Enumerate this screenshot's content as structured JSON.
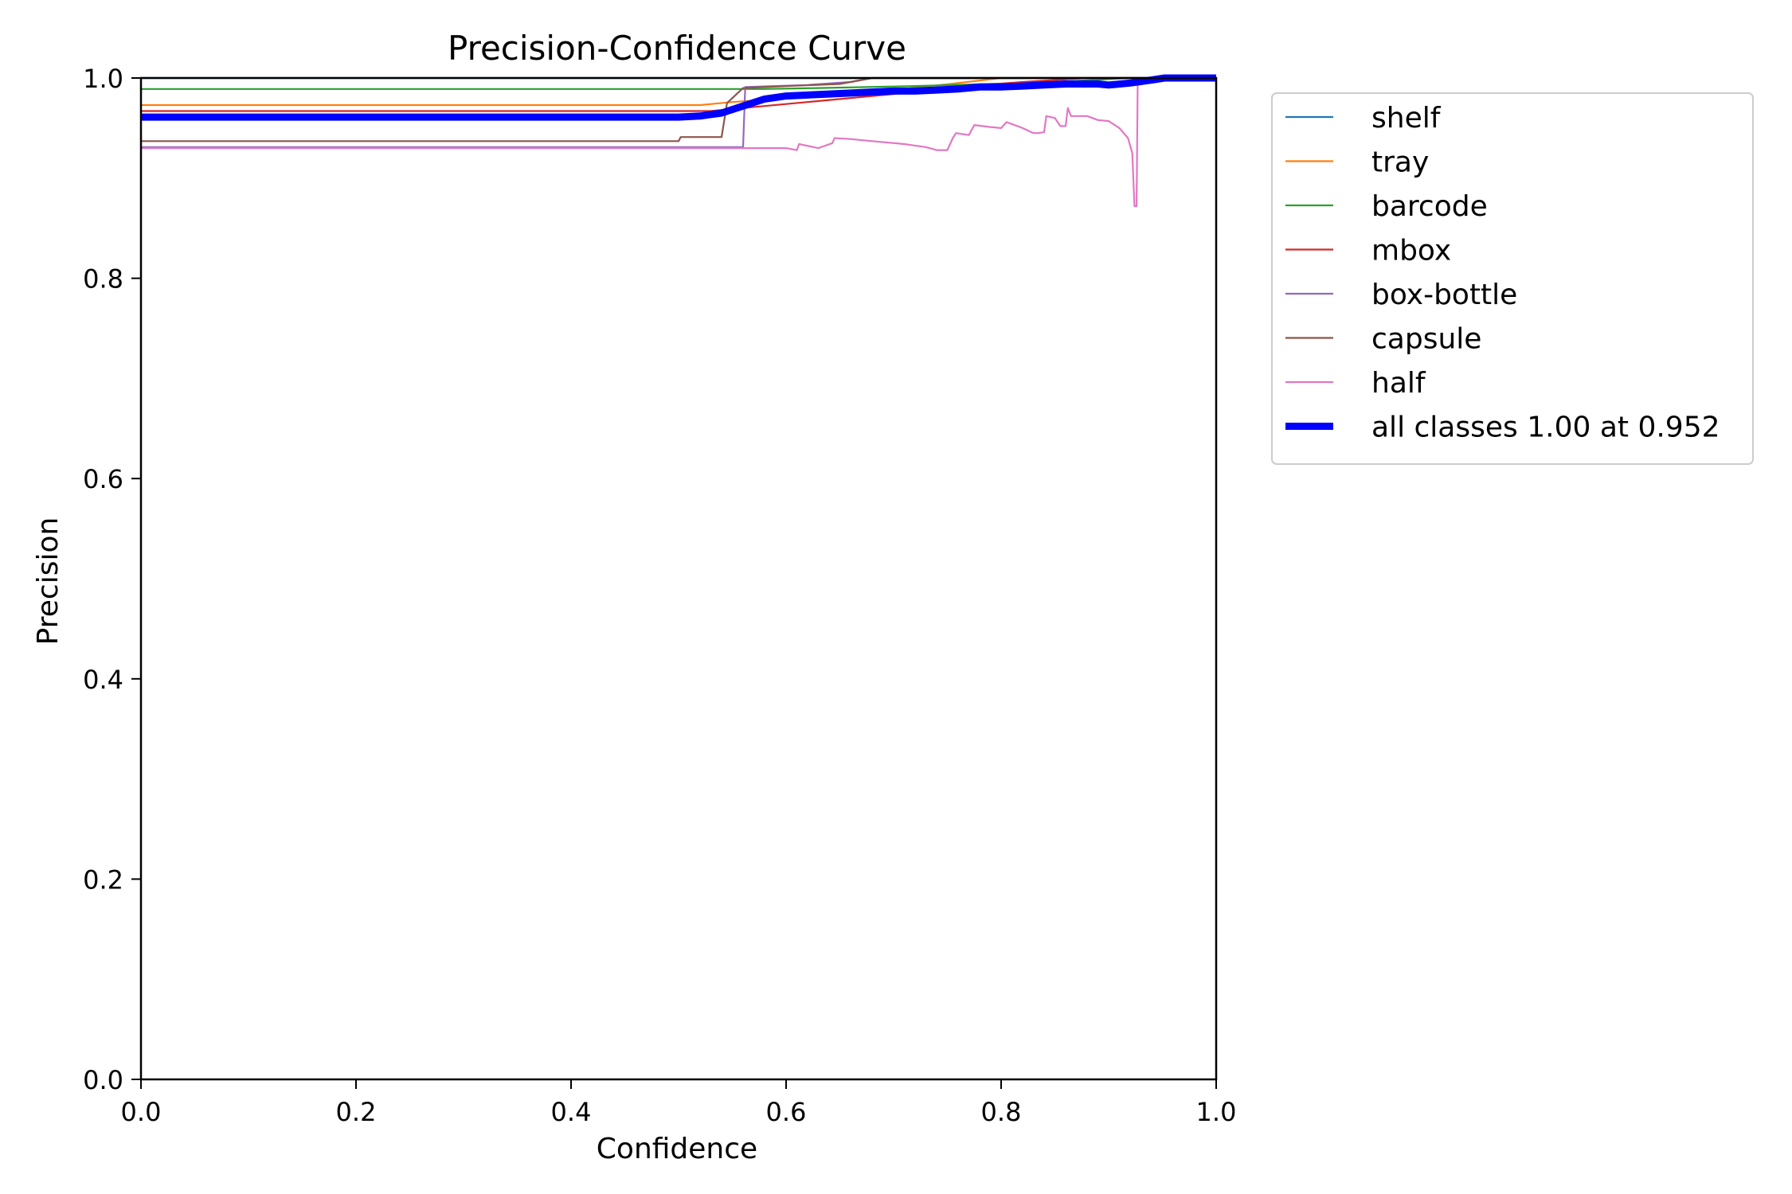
{
  "chart_data": {
    "type": "line",
    "title": "Precision-Confidence Curve",
    "xlabel": "Confidence",
    "ylabel": "Precision",
    "xlim": [
      0.0,
      1.0
    ],
    "ylim": [
      0.0,
      1.0
    ],
    "x_ticks": [
      "0.0",
      "0.2",
      "0.4",
      "0.6",
      "0.8",
      "1.0"
    ],
    "y_ticks": [
      "0.0",
      "0.2",
      "0.4",
      "0.6",
      "0.8",
      "1.0"
    ],
    "grid": false,
    "legend_position": "outside-upper-right",
    "series": [
      {
        "name": "shelf",
        "color": "#1f77b4",
        "width": "thin",
        "points": [
          [
            0.0,
            1.0
          ],
          [
            1.0,
            1.0
          ]
        ]
      },
      {
        "name": "tray",
        "color": "#ff7f0e",
        "width": "thin",
        "points": [
          [
            0.0,
            0.973
          ],
          [
            0.52,
            0.973
          ],
          [
            0.55,
            0.976
          ],
          [
            0.62,
            0.981
          ],
          [
            0.7,
            0.988
          ],
          [
            0.76,
            0.995
          ],
          [
            0.8,
            1.0
          ],
          [
            1.0,
            1.0
          ]
        ]
      },
      {
        "name": "barcode",
        "color": "#2ca02c",
        "width": "thin",
        "points": [
          [
            0.0,
            0.989
          ],
          [
            0.58,
            0.989
          ],
          [
            0.63,
            0.99
          ],
          [
            0.72,
            0.992
          ],
          [
            0.85,
            0.996
          ],
          [
            0.92,
            1.0
          ],
          [
            1.0,
            1.0
          ]
        ]
      },
      {
        "name": "mbox",
        "color": "#d62728",
        "width": "thin",
        "points": [
          [
            0.0,
            0.967
          ],
          [
            0.53,
            0.967
          ],
          [
            0.56,
            0.97
          ],
          [
            0.62,
            0.976
          ],
          [
            0.7,
            0.984
          ],
          [
            0.76,
            0.991
          ],
          [
            0.82,
            0.996
          ],
          [
            0.88,
            1.0
          ],
          [
            1.0,
            1.0
          ]
        ]
      },
      {
        "name": "box-bottle",
        "color": "#9467bd",
        "width": "thin",
        "points": [
          [
            0.0,
            0.931
          ],
          [
            0.558,
            0.931
          ],
          [
            0.56,
            0.931
          ],
          [
            0.562,
            0.991
          ],
          [
            0.62,
            0.993
          ],
          [
            0.66,
            0.996
          ],
          [
            0.68,
            1.0
          ],
          [
            1.0,
            1.0
          ]
        ]
      },
      {
        "name": "capsule",
        "color": "#8c564b",
        "width": "thin",
        "points": [
          [
            0.0,
            0.937
          ],
          [
            0.5,
            0.937
          ],
          [
            0.502,
            0.941
          ],
          [
            0.54,
            0.941
          ],
          [
            0.545,
            0.975
          ],
          [
            0.56,
            0.99
          ],
          [
            0.6,
            0.992
          ],
          [
            0.65,
            0.994
          ],
          [
            0.68,
            1.0
          ],
          [
            1.0,
            1.0
          ]
        ]
      },
      {
        "name": "half",
        "color": "#e377c2",
        "width": "thin",
        "points": [
          [
            0.0,
            0.93
          ],
          [
            0.6,
            0.93
          ],
          [
            0.61,
            0.928
          ],
          [
            0.612,
            0.934
          ],
          [
            0.63,
            0.93
          ],
          [
            0.643,
            0.935
          ],
          [
            0.645,
            0.94
          ],
          [
            0.66,
            0.939
          ],
          [
            0.68,
            0.937
          ],
          [
            0.71,
            0.934
          ],
          [
            0.73,
            0.931
          ],
          [
            0.74,
            0.928
          ],
          [
            0.75,
            0.928
          ],
          [
            0.755,
            0.94
          ],
          [
            0.758,
            0.945
          ],
          [
            0.77,
            0.943
          ],
          [
            0.775,
            0.953
          ],
          [
            0.79,
            0.951
          ],
          [
            0.8,
            0.95
          ],
          [
            0.805,
            0.956
          ],
          [
            0.82,
            0.95
          ],
          [
            0.83,
            0.945
          ],
          [
            0.835,
            0.945
          ],
          [
            0.84,
            0.946
          ],
          [
            0.842,
            0.962
          ],
          [
            0.85,
            0.96
          ],
          [
            0.855,
            0.952
          ],
          [
            0.86,
            0.952
          ],
          [
            0.862,
            0.97
          ],
          [
            0.865,
            0.962
          ],
          [
            0.88,
            0.962
          ],
          [
            0.89,
            0.958
          ],
          [
            0.9,
            0.957
          ],
          [
            0.91,
            0.95
          ],
          [
            0.918,
            0.94
          ],
          [
            0.922,
            0.925
          ],
          [
            0.924,
            0.872
          ],
          [
            0.926,
            0.872
          ],
          [
            0.927,
            1.0
          ],
          [
            1.0,
            1.0
          ]
        ]
      },
      {
        "name": "all classes 1.00 at 0.952",
        "color": "#0000ff",
        "width": "thick",
        "points": [
          [
            0.0,
            0.961
          ],
          [
            0.5,
            0.961
          ],
          [
            0.52,
            0.962
          ],
          [
            0.54,
            0.965
          ],
          [
            0.56,
            0.972
          ],
          [
            0.58,
            0.979
          ],
          [
            0.6,
            0.982
          ],
          [
            0.62,
            0.983
          ],
          [
            0.64,
            0.984
          ],
          [
            0.66,
            0.985
          ],
          [
            0.68,
            0.986
          ],
          [
            0.7,
            0.987
          ],
          [
            0.72,
            0.987
          ],
          [
            0.74,
            0.988
          ],
          [
            0.76,
            0.989
          ],
          [
            0.78,
            0.991
          ],
          [
            0.8,
            0.991
          ],
          [
            0.82,
            0.992
          ],
          [
            0.84,
            0.993
          ],
          [
            0.86,
            0.994
          ],
          [
            0.88,
            0.994
          ],
          [
            0.89,
            0.994
          ],
          [
            0.9,
            0.993
          ],
          [
            0.92,
            0.995
          ],
          [
            0.94,
            0.998
          ],
          [
            0.952,
            1.0
          ],
          [
            1.0,
            1.0
          ]
        ]
      }
    ]
  }
}
